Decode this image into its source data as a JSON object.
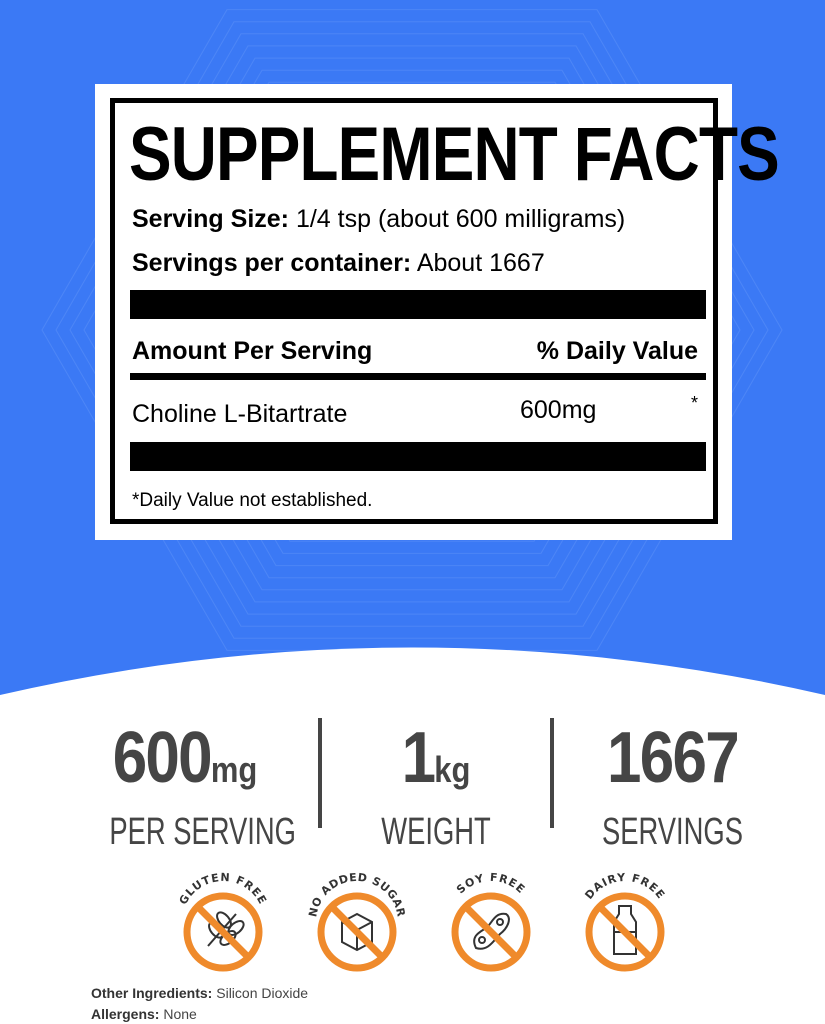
{
  "colors": {
    "background": "#3b79f5",
    "badge": "#ef8a2b",
    "stat_text": "#454545"
  },
  "facts": {
    "title": "SUPPLEMENT FACTS",
    "serving_size_label": "Serving Size:",
    "serving_size_value": "1/4 tsp (about 600 milligrams)",
    "servings_label": "Servings per container:",
    "servings_value": "About 1667",
    "amount_header": "Amount Per Serving",
    "dv_header": "% Daily Value",
    "ingredient": "Choline L-Bitartrate",
    "ingredient_amount": "600mg",
    "ingredient_dv": "*",
    "footnote": "*Daily Value not established."
  },
  "stats": [
    {
      "value": "600",
      "unit": "mg",
      "label": "PER SERVING"
    },
    {
      "value": "1",
      "unit": "kg",
      "label": "WEIGHT"
    },
    {
      "value": "1667",
      "unit": "",
      "label": "SERVINGS"
    }
  ],
  "badges": [
    {
      "label": "GLUTEN FREE",
      "icon": "wheat-icon"
    },
    {
      "label": "NO ADDED SUGAR",
      "icon": "sugar-cube-icon"
    },
    {
      "label": "SOY FREE",
      "icon": "soybean-icon"
    },
    {
      "label": "DAIRY FREE",
      "icon": "milk-bottle-icon"
    }
  ],
  "other_ingredients_label": "Other Ingredients:",
  "other_ingredients_value": "Silicon Dioxide",
  "allergens_label": "Allergens:",
  "allergens_value": "None"
}
